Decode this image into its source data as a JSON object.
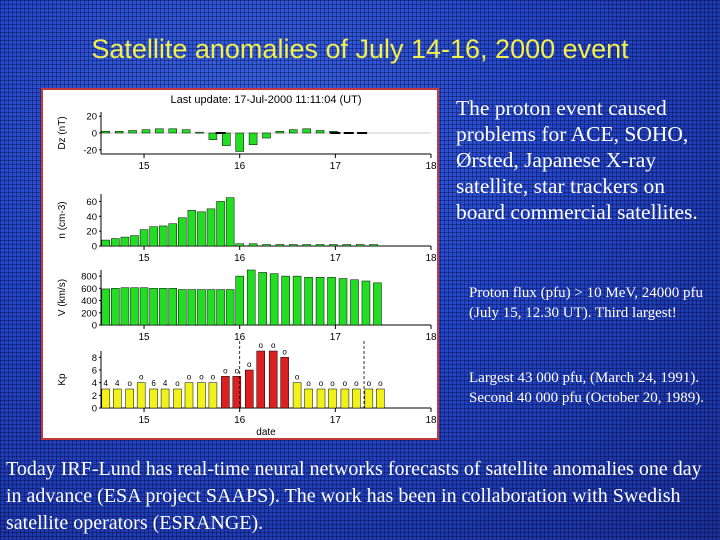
{
  "slide": {
    "title": "Satellite anomalies of July 14-16, 2000 event",
    "side_main": "The proton event caused problems for ACE, SOHO, Ørsted, Japanese X-ray satellite, star trackers on board commercial satellites.",
    "side_note_1": "Proton flux (pfu) > 10 MeV, 24000 pfu (July 15, 12.30 UT). Third largest!",
    "side_note_2": "Largest 43 000 pfu, (March 24, 1991). Second 40 000 pfu (October 20, 1989).",
    "bottom_text": "Today IRF-Lund has real-time neural networks forecasts of satellite anomalies one day in advance (ESA project SAAPS). The work has been in collaboration with Swedish satellite operators (ESRANGE).",
    "colors": {
      "title": "#f3f04a",
      "text": "#ffffff",
      "bg": "#2446c8",
      "frame": "#c43a3a"
    }
  },
  "chart_data": [
    {
      "type": "bar",
      "header": "Last update: 17-Jul-2000 11:11:04 (UT)",
      "ylabel": "Dz (nT)",
      "ylim": [
        -25,
        25
      ],
      "yticks": [
        "20",
        "0",
        "-20"
      ],
      "xticks": [
        "15",
        "16",
        "17",
        "18"
      ],
      "x_range": [
        14.55,
        18.0
      ],
      "series": [
        {
          "color": "#22dd22",
          "x": [
            14.6,
            14.74,
            14.88,
            15.02,
            15.16,
            15.3,
            15.44,
            15.58,
            15.72,
            15.86,
            16.0,
            16.14,
            16.28,
            16.42,
            16.56,
            16.7,
            16.84,
            16.98
          ],
          "values": [
            2,
            2,
            3,
            4,
            5,
            5,
            4,
            1,
            -8,
            -15,
            -22,
            -14,
            -6,
            2,
            4,
            5,
            3,
            2
          ]
        }
      ],
      "dashes": {
        "x": [
          15.8,
          17.0,
          17.14,
          17.28
        ],
        "value": 0
      }
    },
    {
      "type": "bar",
      "ylabel": "n (cm-3)",
      "ylim": [
        0,
        70
      ],
      "yticks": [
        "60",
        "40",
        "20",
        "0"
      ],
      "xticks": [
        "15",
        "16",
        "17",
        "18"
      ],
      "x_range": [
        14.55,
        18.0
      ],
      "series": [
        {
          "color": "#22dd22",
          "x": [
            14.6,
            14.7,
            14.8,
            14.9,
            15.0,
            15.1,
            15.2,
            15.3,
            15.4,
            15.5,
            15.6,
            15.7,
            15.8,
            15.9,
            16.0,
            16.14,
            16.28,
            16.42,
            16.56,
            16.7,
            16.84,
            16.98,
            17.12,
            17.26,
            17.4
          ],
          "values": [
            8,
            10,
            12,
            14,
            22,
            26,
            27,
            30,
            38,
            48,
            46,
            50,
            60,
            65,
            3,
            3,
            2,
            2,
            2,
            2,
            2,
            2,
            2,
            2,
            2
          ]
        }
      ]
    },
    {
      "type": "bar",
      "ylabel": "V (km/s)",
      "ylim": [
        0,
        900
      ],
      "yticks": [
        "800",
        "600",
        "400",
        "200",
        "0"
      ],
      "xticks": [
        "15",
        "16",
        "17",
        "18"
      ],
      "x_range": [
        14.55,
        18.0
      ],
      "series": [
        {
          "color": "#22dd22",
          "x": [
            14.6,
            14.7,
            14.8,
            14.9,
            15.0,
            15.1,
            15.2,
            15.3,
            15.4,
            15.5,
            15.6,
            15.7,
            15.8,
            15.9,
            16.0,
            16.12,
            16.24,
            16.36,
            16.48,
            16.6,
            16.72,
            16.84,
            16.96,
            17.08,
            17.2,
            17.32,
            17.44
          ],
          "values": [
            590,
            600,
            610,
            610,
            610,
            600,
            600,
            600,
            580,
            580,
            580,
            580,
            580,
            580,
            800,
            900,
            860,
            840,
            800,
            800,
            780,
            780,
            780,
            760,
            740,
            720,
            690
          ]
        }
      ]
    },
    {
      "type": "bar",
      "ylabel": "Kp",
      "xlabel": "date",
      "ylim": [
        0,
        9
      ],
      "yticks": [
        "8",
        "6",
        "4",
        "2",
        "0"
      ],
      "xticks": [
        "15",
        "16",
        "17",
        "18"
      ],
      "x_range": [
        14.55,
        18.0
      ],
      "series": [
        {
          "x": [
            14.6,
            14.72,
            14.85,
            14.97,
            15.1,
            15.22,
            15.35,
            15.47,
            15.6,
            15.72,
            15.85,
            15.97,
            16.1,
            16.22,
            16.35,
            16.47,
            16.6,
            16.72,
            16.85,
            16.97,
            17.1,
            17.22,
            17.35,
            17.47
          ],
          "values": [
            3,
            3,
            3,
            4,
            3,
            3,
            3,
            4,
            4,
            4,
            5,
            5,
            6,
            9,
            9,
            8,
            4,
            3,
            3,
            3,
            3,
            3,
            3,
            3
          ],
          "colors": [
            "#f2f21a",
            "#f2f21a",
            "#f2f21a",
            "#f2f21a",
            "#f2f21a",
            "#f2f21a",
            "#f2f21a",
            "#f2f21a",
            "#f2f21a",
            "#f2f21a",
            "#dd1f1f",
            "#dd1f1f",
            "#dd1f1f",
            "#dd1f1f",
            "#dd1f1f",
            "#dd1f1f",
            "#f2f21a",
            "#f2f21a",
            "#f2f21a",
            "#f2f21a",
            "#f2f21a",
            "#f2f21a",
            "#f2f21a",
            "#f2f21a"
          ],
          "labels": [
            "4",
            "4",
            "o",
            "o",
            "6",
            "4",
            "o",
            "o",
            "o",
            "o",
            "o",
            "o",
            "o",
            "o",
            "o",
            "o",
            "o",
            "o",
            "o",
            "o",
            "o",
            "o",
            "o",
            "o"
          ]
        }
      ],
      "vlines": [
        16.0,
        17.3
      ]
    }
  ]
}
